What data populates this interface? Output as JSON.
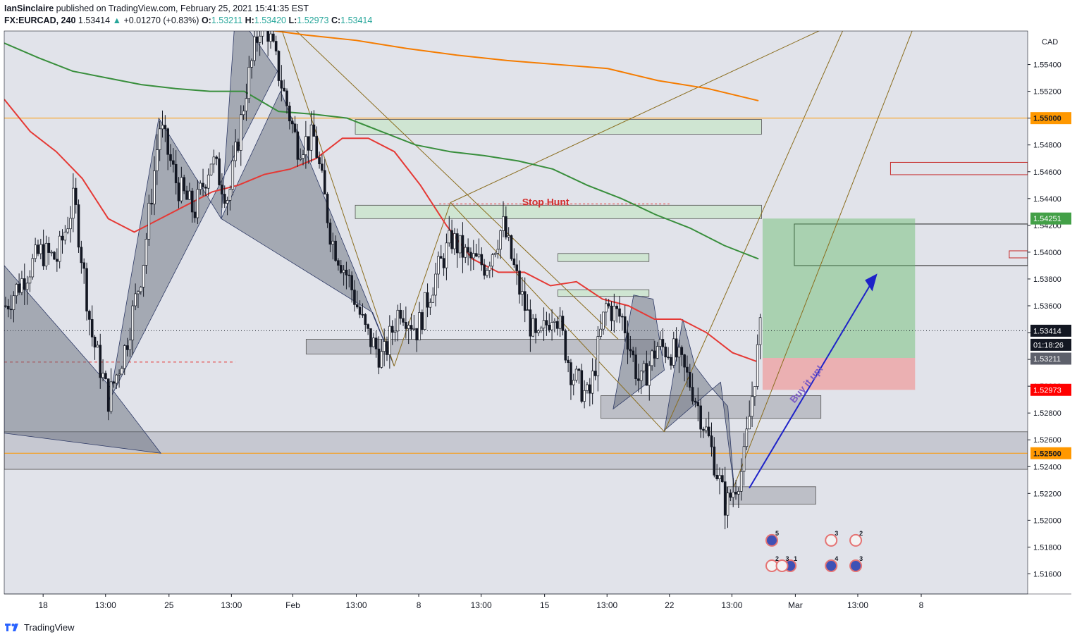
{
  "header": {
    "author": "IanSinclaire",
    "published_text": "published on TradingView.com, February 25, 2021 15:41:35 EST",
    "symbol": "FX:EURCAD, 240",
    "price": "1.53414",
    "change": "+0.01270 (+0.83%)",
    "o_label": "O:",
    "o": "1.53211",
    "h_label": "H:",
    "h": "1.53420",
    "l_label": "L:",
    "l": "1.52973",
    "c_label": "C:",
    "c": "1.53414"
  },
  "footer": {
    "brand": "TradingView"
  },
  "colors": {
    "plot_bg": "#e1e3ea",
    "up_candle": "#ffffff",
    "down_candle": "#131722",
    "ema_red": "#e53935",
    "ema_green": "#388e3c",
    "ema_orange": "#f57c00",
    "zone_green": "#c8e6c9",
    "zone_gray": "#b0b3bb",
    "pattern": "#5c6270",
    "arrow_blue": "#1e22c8",
    "label_orange": "#ff9800",
    "label_green": "#43a047",
    "label_red": "#ff0000",
    "label_black": "#131722"
  },
  "chart_data": {
    "type": "candlestick",
    "currency_label": "CAD",
    "ylim": [
      1.5145,
      1.5565
    ],
    "y_ticks": [
      "1.51600",
      "1.51800",
      "1.52000",
      "1.52200",
      "1.52400",
      "1.52600",
      "1.52800",
      "1.53000",
      "1.53200",
      "1.53400",
      "1.53600",
      "1.53800",
      "1.54000",
      "1.54200",
      "1.54400",
      "1.54600",
      "1.54800",
      "1.55000",
      "1.55200",
      "1.55400"
    ],
    "x_ticks": [
      "18",
      "13:00",
      "25",
      "13:00",
      "Feb",
      "13:00",
      "8",
      "13:00",
      "15",
      "13:00",
      "22",
      "13:00",
      "Mar",
      "13:00",
      "8"
    ],
    "price_labels": [
      {
        "value": "1.55000",
        "kind": "level",
        "color": "orange"
      },
      {
        "value": "1.54251",
        "kind": "level",
        "color": "green"
      },
      {
        "value": "1.53414",
        "kind": "last",
        "color": "black"
      },
      {
        "value": "01:18:26",
        "kind": "countdown",
        "color": "black"
      },
      {
        "value": "1.53211",
        "kind": "open",
        "color": "gray"
      },
      {
        "value": "1.52973",
        "kind": "stop",
        "color": "red"
      },
      {
        "value": "1.52500",
        "kind": "level",
        "color": "orange"
      }
    ],
    "horizontal_levels": [
      1.55,
      1.525
    ],
    "annotations": [
      {
        "text": "Stop Hunt",
        "color": "#d32f2f"
      },
      {
        "text": "Buy it up!",
        "color": "#7b5cc4"
      }
    ],
    "position": {
      "entry": 1.53211,
      "target": 1.54251,
      "stop": 1.52973
    },
    "events": [
      "5",
      "2",
      "3",
      "1",
      "3",
      "2",
      "4"
    ],
    "series": [
      {
        "name": "EMA fast",
        "values": [
          1.5514,
          1.549,
          1.5475,
          1.5455,
          1.5425,
          1.5415,
          1.5425,
          1.5435,
          1.5445,
          1.545,
          1.5458,
          1.5462,
          1.547,
          1.5485,
          1.5485,
          1.5475,
          1.545,
          1.542,
          1.5395,
          1.5385,
          1.5385,
          1.5375,
          1.5378,
          1.5365,
          1.536,
          1.535,
          1.535,
          1.534,
          1.5325,
          1.5318
        ]
      },
      {
        "name": "EMA mid",
        "values": [
          1.5556,
          1.5545,
          1.5535,
          1.553,
          1.5525,
          1.5522,
          1.552,
          1.552,
          1.5505,
          1.5503,
          1.55,
          1.549,
          1.548,
          1.5475,
          1.5472,
          1.5468,
          1.5462,
          1.545,
          1.544,
          1.5428,
          1.5418,
          1.5405,
          1.5395
        ]
      },
      {
        "name": "EMA slow",
        "values": [
          1.5567,
          1.5569,
          1.557,
          1.557,
          1.5569,
          1.5567,
          1.5562,
          1.5558,
          1.5552,
          1.5547,
          1.5543,
          1.554,
          1.5537,
          1.5528,
          1.5522,
          1.5513
        ]
      },
      {
        "name": "price",
        "values": [
          1.536,
          1.538,
          1.54,
          1.5395,
          1.544,
          1.534,
          1.529,
          1.533,
          1.539,
          1.5495,
          1.545,
          1.543,
          1.547,
          1.544,
          1.552,
          1.558,
          1.553,
          1.548,
          1.5485,
          1.541,
          1.538,
          1.534,
          1.532,
          1.536,
          1.5342,
          1.538,
          1.541,
          1.5395,
          1.539,
          1.542,
          1.537,
          1.533,
          1.536,
          1.531,
          1.529,
          1.536,
          1.535,
          1.53,
          1.533,
          1.5325,
          1.53,
          1.526,
          1.521,
          1.524,
          1.5341
        ]
      }
    ]
  }
}
